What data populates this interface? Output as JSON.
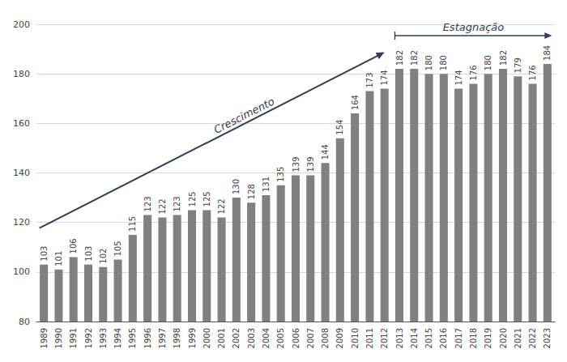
{
  "chart_data": {
    "type": "bar",
    "categories": [
      "1989",
      "1990",
      "1991",
      "1992",
      "1993",
      "1994",
      "1995",
      "1996",
      "1997",
      "1998",
      "1999",
      "2000",
      "2001",
      "2002",
      "2003",
      "2004",
      "2005",
      "2006",
      "2007",
      "2008",
      "2009",
      "2010",
      "2011",
      "2012",
      "2013",
      "2014",
      "2015",
      "2016",
      "2017",
      "2018",
      "2019",
      "2020",
      "2021",
      "2022",
      "2023"
    ],
    "values": [
      103,
      101,
      106,
      103,
      102,
      105,
      115,
      123,
      122,
      123,
      125,
      125,
      122,
      130,
      128,
      131,
      135,
      139,
      139,
      144,
      154,
      164,
      173,
      174,
      182,
      182,
      180,
      180,
      174,
      176,
      180,
      182,
      179,
      176,
      184
    ],
    "color": "#808080",
    "ylim": [
      80,
      200
    ],
    "yticks": [
      80,
      100,
      120,
      140,
      160,
      180,
      200
    ],
    "grid": true,
    "data_labels": true,
    "annotations": [
      {
        "text": "Crescimento",
        "color": "#2e4057"
      },
      {
        "text": "Estagnação",
        "color": "#2e4057"
      }
    ]
  }
}
